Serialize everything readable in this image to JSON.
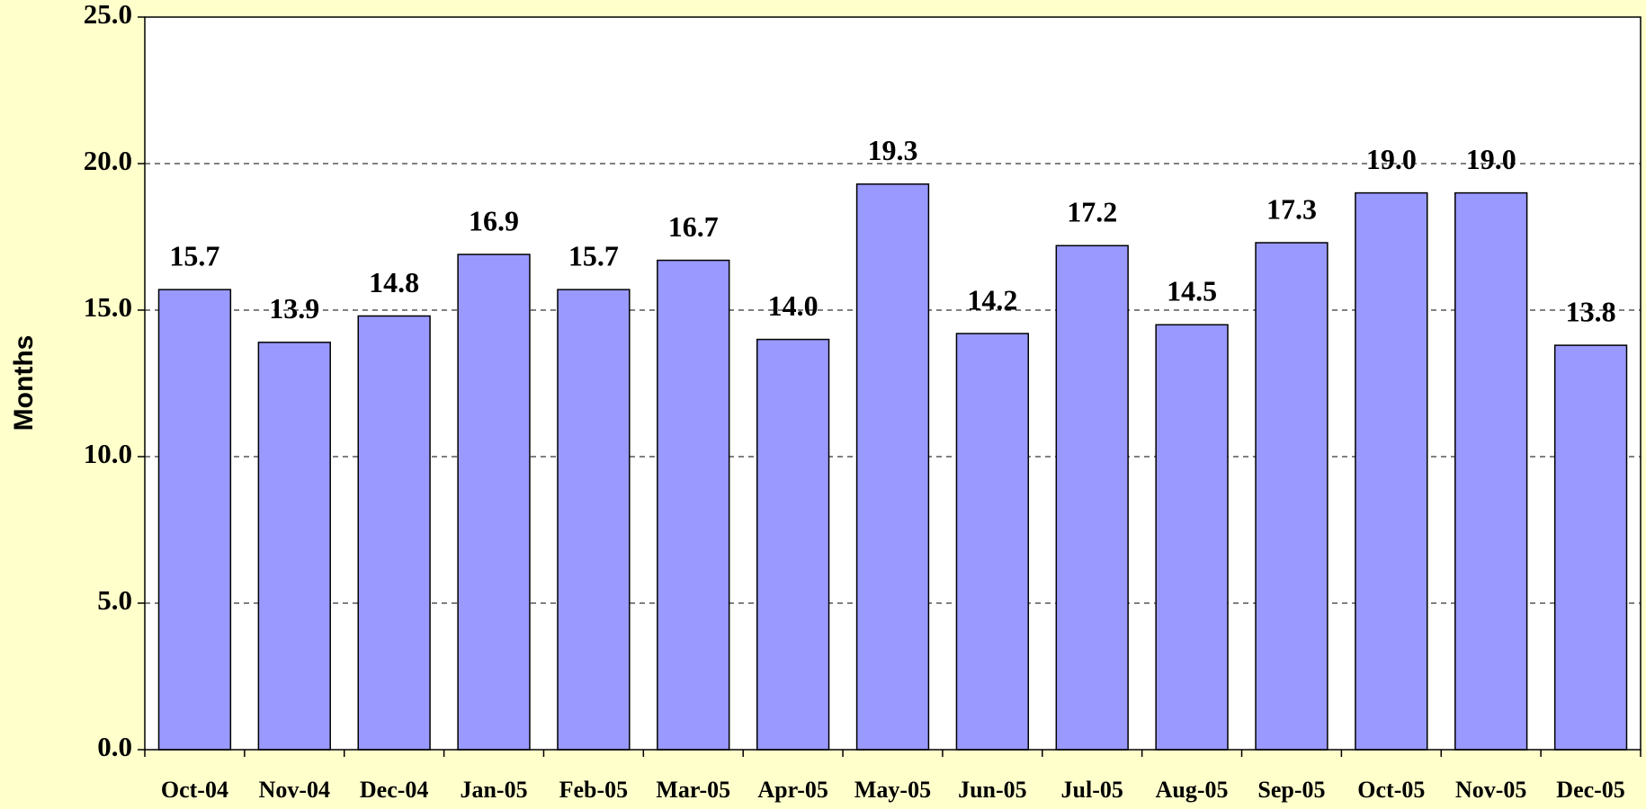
{
  "chart_data": {
    "type": "bar",
    "y_label": "Months",
    "categories": [
      "Oct-04",
      "Nov-04",
      "Dec-04",
      "Jan-05",
      "Feb-05",
      "Mar-05",
      "Apr-05",
      "May-05",
      "Jun-05",
      "Jul-05",
      "Aug-05",
      "Sep-05",
      "Oct-05",
      "Nov-05",
      "Dec-05"
    ],
    "values": [
      15.7,
      13.9,
      14.8,
      16.9,
      15.7,
      16.7,
      14.0,
      19.3,
      14.2,
      17.2,
      14.5,
      17.3,
      19.0,
      19.0,
      13.8
    ],
    "value_labels": [
      "15.7",
      "13.9",
      "14.8",
      "16.9",
      "15.7",
      "16.7",
      "14.0",
      "19.3",
      "14.2",
      "17.2",
      "14.5",
      "17.3",
      "19.0",
      "19.0",
      "13.8"
    ],
    "color": "#9999ff",
    "ylim": [
      0,
      25
    ],
    "yticks": [
      {
        "value": 0,
        "label": "0.0"
      },
      {
        "value": 5,
        "label": "5.0"
      },
      {
        "value": 10,
        "label": "10.0"
      },
      {
        "value": 15,
        "label": "15.0"
      },
      {
        "value": 20,
        "label": "20.0"
      },
      {
        "value": 25,
        "label": "25.0"
      }
    ],
    "grid": true
  }
}
